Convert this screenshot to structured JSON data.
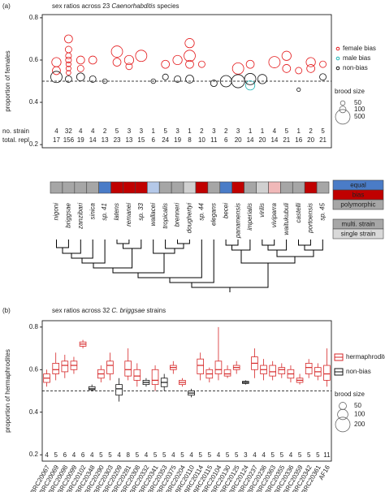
{
  "chart_data": [
    {
      "type": "scatter",
      "label": "(a)",
      "title_parts": [
        "sex ratios across 23 ",
        "Caenorhabditis",
        " species"
      ],
      "ylabel": "proportion of females",
      "categories": [
        "nigoni",
        "briggsae",
        "zanzibari",
        "sinica",
        "sp. 41",
        "latens",
        "remanei",
        "sp. 33",
        "wallacei",
        "tropicalis",
        "brenneri",
        "doughertyi",
        "sp. 44",
        "elegans",
        "becei",
        "panamensis",
        "imperialis",
        "virilis",
        "viviparra",
        "waitukubuli",
        "castelli",
        "portoensis",
        "sp. 45"
      ],
      "ylim": [
        0.185,
        0.815
      ],
      "yticks": [
        0.2,
        0.4,
        0.6,
        0.8
      ],
      "reference_line": 0.5,
      "series": [
        {
          "name": "female bias",
          "color": "#e41a1c",
          "x": [
            "nigoni",
            "nigoni",
            "briggsae",
            "briggsae",
            "briggsae",
            "briggsae",
            "briggsae",
            "briggsae",
            "briggsae",
            "zanzibari",
            "zanzibari",
            "sinica",
            "latens",
            "latens",
            "remanei",
            "remanei",
            "sp. 33",
            "tropicalis",
            "brenneri",
            "doughertyi",
            "doughertyi",
            "doughertyi",
            "sp. 44",
            "panamensis",
            "imperialis",
            "viviparra",
            "waitukubuli",
            "waitukubuli",
            "castelli",
            "portoensis",
            "portoensis",
            "sp. 45"
          ],
          "values": [
            0.59,
            0.55,
            0.7,
            0.65,
            0.62,
            0.6,
            0.58,
            0.56,
            0.54,
            0.6,
            0.56,
            0.6,
            0.64,
            0.59,
            0.6,
            0.57,
            0.62,
            0.58,
            0.6,
            0.68,
            0.62,
            0.58,
            0.58,
            0.56,
            0.58,
            0.59,
            0.62,
            0.56,
            0.55,
            0.59,
            0.56,
            0.58
          ],
          "sizes": [
            200,
            150,
            150,
            100,
            80,
            80,
            60,
            60,
            50,
            150,
            100,
            150,
            300,
            150,
            200,
            100,
            300,
            150,
            200,
            200,
            300,
            150,
            100,
            300,
            150,
            300,
            200,
            150,
            100,
            200,
            150,
            100
          ]
        },
        {
          "name": "male bias",
          "color": "#1fb3b3",
          "x": [
            "imperialis"
          ],
          "values": [
            0.48
          ],
          "sizes": [
            200
          ]
        },
        {
          "name": "non-bias",
          "color": "#111111",
          "x": [
            "nigoni",
            "briggsae",
            "zanzibari",
            "sinica",
            "sp. 41",
            "wallacei",
            "tropicalis",
            "brenneri",
            "doughertyi",
            "elegans",
            "becei",
            "panamensis",
            "imperialis",
            "virilis",
            "castelli",
            "sp. 45"
          ],
          "values": [
            0.52,
            0.51,
            0.52,
            0.51,
            0.5,
            0.5,
            0.52,
            0.51,
            0.51,
            0.49,
            0.5,
            0.5,
            0.51,
            0.51,
            0.46,
            0.52
          ],
          "sizes": [
            300,
            100,
            150,
            100,
            50,
            50,
            80,
            100,
            150,
            100,
            300,
            400,
            300,
            200,
            30,
            100
          ]
        }
      ],
      "size_legend": {
        "title": "brood size",
        "values": [
          50,
          100,
          500
        ]
      },
      "count_rows": [
        {
          "label": "no. strain",
          "values": [
            4,
            32,
            4,
            4,
            2,
            5,
            3,
            3,
            1,
            5,
            3,
            1,
            2,
            3,
            2,
            3,
            1,
            1,
            4,
            5,
            1,
            2,
            5
          ]
        },
        {
          "label": "total. repl",
          "values": [
            17,
            156,
            19,
            14,
            13,
            23,
            13,
            15,
            6,
            24,
            19,
            8,
            10,
            11,
            6,
            20,
            14,
            20,
            14,
            21,
            16,
            20,
            21
          ]
        }
      ],
      "strip_colors": [
        "#a6a6a6",
        "#a6a6a6",
        "#a6a6a6",
        "#a6a6a6",
        "#4a7cc7",
        "#c00000",
        "#c00000",
        "#c00000",
        "#b4c8e8",
        "#a6a6a6",
        "#a6a6a6",
        "#d0d0d0",
        "#c00000",
        "#a6a6a6",
        "#4a7cc7",
        "#c00000",
        "#a6a6a6",
        "#d0d0d0",
        "#f0b8b8",
        "#a6a6a6",
        "#a6a6a6",
        "#c00000",
        "#a6a6a6"
      ],
      "strip_legend": [
        {
          "label": "equal",
          "color": "#4a7cc7"
        },
        {
          "label": "bias",
          "color": "#c00000"
        },
        {
          "label": "polymorphic",
          "color": "#a6a6a6"
        },
        {
          "label": "multi. strain",
          "color": "#a6a6a6"
        },
        {
          "label": "single strain",
          "color": "#d9d9d9"
        }
      ]
    },
    {
      "type": "box",
      "label": "(b)",
      "title_parts": [
        "sex ratios across 32 ",
        "C. briggsae",
        " strains"
      ],
      "ylabel": "proportion of hermaphrodites",
      "categories": [
        "BRC20067",
        "BRC20069",
        "BRC20098",
        "BRC20099",
        "BRC20102",
        "BRC20348",
        "BRC20290",
        "BRC20303",
        "BRC20209",
        "BRC20281",
        "BRC20308",
        "BRC20332",
        "BRC20341",
        "BRC20353",
        "BRC20375",
        "BRC20204",
        "BRC20110",
        "BRC20114",
        "BRC20115",
        "BRC20104",
        "BRC20130",
        "BRC20125",
        "BRC20124",
        "BRC20237",
        "BRC20236",
        "BRC20363",
        "BRC20355",
        "BRC20336",
        "BRC20359",
        "BRC20342",
        "BRC20361",
        "AF16"
      ],
      "ylim": [
        0.17,
        0.83
      ],
      "yticks": [
        0.2,
        0.4,
        0.6,
        0.8
      ],
      "reference_line": 0.5,
      "counts": [
        4,
        5,
        6,
        4,
        6,
        4,
        5,
        5,
        4,
        8,
        5,
        4,
        5,
        5,
        4,
        5,
        4,
        5,
        5,
        4,
        5,
        5,
        3,
        4,
        4,
        5,
        5,
        4,
        5,
        5,
        5,
        11
      ],
      "series": [
        {
          "name": "hermaphrodite bias",
          "color": "#d62728",
          "boxes": [
            {
              "min": 0.52,
              "q1": 0.54,
              "median": 0.56,
              "q3": 0.58,
              "max": 0.6
            },
            {
              "min": 0.55,
              "q1": 0.58,
              "median": 0.6,
              "q3": 0.63,
              "max": 0.68
            },
            {
              "min": 0.56,
              "q1": 0.59,
              "median": 0.62,
              "q3": 0.64,
              "max": 0.67
            },
            {
              "min": 0.58,
              "q1": 0.6,
              "median": 0.62,
              "q3": 0.64,
              "max": 0.66
            },
            {
              "min": 0.7,
              "q1": 0.71,
              "median": 0.72,
              "q3": 0.73,
              "max": 0.74
            },
            null,
            {
              "min": 0.54,
              "q1": 0.56,
              "median": 0.58,
              "q3": 0.6,
              "max": 0.62
            },
            {
              "min": 0.55,
              "q1": 0.58,
              "median": 0.62,
              "q3": 0.64,
              "max": 0.68
            },
            null,
            {
              "min": 0.55,
              "q1": 0.57,
              "median": 0.6,
              "q3": 0.64,
              "max": 0.7
            },
            {
              "min": 0.52,
              "q1": 0.55,
              "median": 0.57,
              "q3": 0.6,
              "max": 0.63
            },
            null,
            {
              "min": 0.5,
              "q1": 0.53,
              "median": 0.55,
              "q3": 0.6,
              "max": 0.62
            },
            null,
            {
              "min": 0.58,
              "q1": 0.6,
              "median": 0.61,
              "q3": 0.62,
              "max": 0.64
            },
            {
              "min": 0.52,
              "q1": 0.53,
              "median": 0.54,
              "q3": 0.55,
              "max": 0.56
            },
            null,
            {
              "min": 0.55,
              "q1": 0.58,
              "median": 0.62,
              "q3": 0.65,
              "max": 0.68
            },
            {
              "min": 0.54,
              "q1": 0.56,
              "median": 0.58,
              "q3": 0.6,
              "max": 0.61
            },
            {
              "min": 0.55,
              "q1": 0.58,
              "median": 0.6,
              "q3": 0.64,
              "max": 0.8
            },
            {
              "min": 0.56,
              "q1": 0.57,
              "median": 0.58,
              "q3": 0.6,
              "max": 0.62
            },
            {
              "min": 0.58,
              "q1": 0.6,
              "median": 0.61,
              "q3": 0.62,
              "max": 0.64
            },
            null,
            {
              "min": 0.56,
              "q1": 0.6,
              "median": 0.63,
              "q3": 0.66,
              "max": 0.7
            },
            {
              "min": 0.55,
              "q1": 0.58,
              "median": 0.6,
              "q3": 0.62,
              "max": 0.65
            },
            {
              "min": 0.55,
              "q1": 0.57,
              "median": 0.59,
              "q3": 0.62,
              "max": 0.64
            },
            {
              "min": 0.56,
              "q1": 0.58,
              "median": 0.6,
              "q3": 0.61,
              "max": 0.63
            },
            {
              "min": 0.54,
              "q1": 0.56,
              "median": 0.58,
              "q3": 0.6,
              "max": 0.62
            },
            {
              "min": 0.53,
              "q1": 0.54,
              "median": 0.55,
              "q3": 0.56,
              "max": 0.58
            },
            {
              "min": 0.56,
              "q1": 0.58,
              "median": 0.61,
              "q3": 0.63,
              "max": 0.65
            },
            {
              "min": 0.55,
              "q1": 0.57,
              "median": 0.59,
              "q3": 0.61,
              "max": 0.63
            },
            {
              "min": 0.52,
              "q1": 0.55,
              "median": 0.58,
              "q3": 0.62,
              "max": 0.7
            }
          ]
        },
        {
          "name": "non-bias",
          "color": "#111111",
          "boxes": [
            null,
            null,
            null,
            null,
            null,
            {
              "min": 0.5,
              "q1": 0.505,
              "median": 0.51,
              "q3": 0.52,
              "max": 0.53
            },
            null,
            null,
            {
              "min": 0.45,
              "q1": 0.48,
              "median": 0.51,
              "q3": 0.53,
              "max": 0.56
            },
            null,
            null,
            {
              "min": 0.52,
              "q1": 0.53,
              "median": 0.54,
              "q3": 0.55,
              "max": 0.56
            },
            null,
            {
              "min": 0.5,
              "q1": 0.52,
              "median": 0.54,
              "q3": 0.56,
              "max": 0.58
            },
            null,
            null,
            {
              "min": 0.47,
              "q1": 0.48,
              "median": 0.49,
              "q3": 0.5,
              "max": 0.51
            },
            null,
            null,
            null,
            null,
            null,
            {
              "min": 0.53,
              "q1": 0.535,
              "median": 0.54,
              "q3": 0.545,
              "max": 0.55
            },
            null,
            null,
            null,
            null,
            null,
            null,
            null,
            null,
            null
          ]
        }
      ],
      "size_legend": {
        "title": "brood size",
        "values": [
          50,
          100,
          200
        ]
      }
    }
  ]
}
